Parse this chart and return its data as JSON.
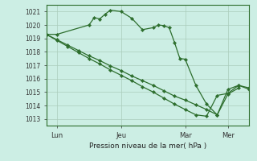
{
  "background_color": "#cceee4",
  "grid_color": "#aaccbb",
  "line_color": "#2d6e2d",
  "marker_color": "#2d6e2d",
  "xlabel": "Pression niveau de la mer( hPa )",
  "ylim": [
    1012.5,
    1021.5
  ],
  "yticks": [
    1013,
    1014,
    1015,
    1016,
    1017,
    1018,
    1019,
    1020,
    1021
  ],
  "xtick_labels": [
    "Lun",
    "Jeu",
    "Mar",
    "Mer"
  ],
  "xtick_positions": [
    1,
    7,
    13,
    17
  ],
  "xlim": [
    0,
    19
  ],
  "series1_x": [
    0,
    1,
    4,
    4.5,
    5,
    5.5,
    6,
    7,
    8,
    9,
    10,
    10.5,
    11,
    11.5,
    12,
    12.5,
    13,
    14,
    15,
    16,
    17,
    18
  ],
  "series1_y": [
    1019.3,
    1019.3,
    1020.0,
    1020.55,
    1020.45,
    1020.8,
    1021.1,
    1021.0,
    1020.5,
    1019.65,
    1019.8,
    1020.0,
    1019.95,
    1019.8,
    1018.7,
    1017.5,
    1017.45,
    1015.5,
    1014.1,
    1013.3,
    1014.85,
    1015.3
  ],
  "series2_x": [
    0,
    1,
    2,
    3,
    4,
    5,
    6,
    7,
    8,
    9,
    10,
    11,
    12,
    13,
    14,
    15,
    16,
    17,
    18,
    19
  ],
  "series2_y": [
    1019.3,
    1018.9,
    1018.5,
    1018.1,
    1017.7,
    1017.35,
    1016.95,
    1016.6,
    1016.2,
    1015.85,
    1015.5,
    1015.1,
    1014.7,
    1014.4,
    1014.05,
    1013.7,
    1013.3,
    1015.2,
    1015.5,
    1015.3
  ],
  "series3_x": [
    0,
    1,
    2,
    3,
    4,
    5,
    6,
    7,
    8,
    9,
    10,
    11,
    12,
    13,
    14,
    15,
    16,
    17,
    18,
    19
  ],
  "series3_y": [
    1019.3,
    1018.85,
    1018.4,
    1017.95,
    1017.5,
    1017.1,
    1016.65,
    1016.25,
    1015.85,
    1015.4,
    1015.0,
    1014.55,
    1014.1,
    1013.7,
    1013.3,
    1013.2,
    1014.75,
    1014.9,
    1015.5,
    1015.2
  ]
}
